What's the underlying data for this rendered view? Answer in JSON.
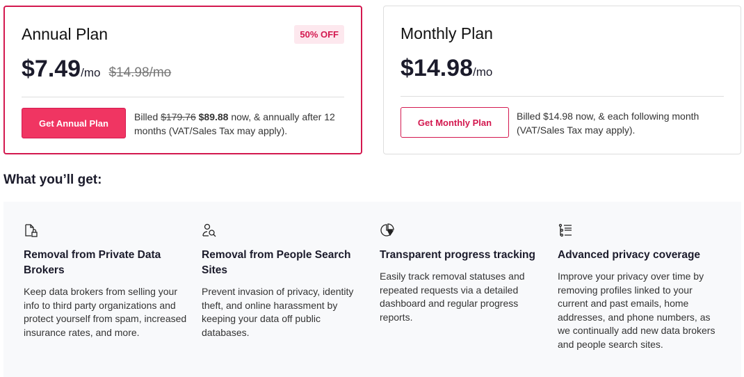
{
  "annual": {
    "title": "Annual Plan",
    "badge": "50% OFF",
    "price": "$7.49",
    "per": "/mo",
    "old_price": "$14.98/mo",
    "button": "Get Annual Plan",
    "billed_prefix": "Billed",
    "billed_old": "$179.76",
    "billed_new": "$89.88",
    "billed_suffix": "now, & annually after 12 months (VAT/Sales Tax may apply)."
  },
  "monthly": {
    "title": "Monthly Plan",
    "price": "$14.98",
    "per": "/mo",
    "button": "Get Monthly Plan",
    "billed": "Billed $14.98 now, & each following month (VAT/Sales Tax may apply)."
  },
  "section_title": "What you’ll get:",
  "features": [
    {
      "icon": "file-lock-icon",
      "title": "Removal from Private Data Brokers",
      "desc": "Keep data brokers from selling your info to third party organizations and protect yourself from spam, increased insurance rates, and more."
    },
    {
      "icon": "user-search-icon",
      "title": "Removal from People Search Sites",
      "desc": "Prevent invasion of privacy, identity theft, and online harassment by keeping your data off public databases."
    },
    {
      "icon": "pie-chart-icon",
      "title": "Transparent progress tracking",
      "desc": "Easily track removal statuses and repeated requests via a detailed dashboard and regular progress reports."
    },
    {
      "icon": "list-tree-icon",
      "title": "Advanced privacy coverage",
      "desc": "Improve your privacy over time by removing profiles linked to your current and past emails, home addresses, and phone numbers, as we continually add new data brokers and people search sites."
    }
  ],
  "colors": {
    "accent": "#d3184f",
    "button_fill": "#f03562",
    "feature_bg": "#f8f9fb"
  }
}
